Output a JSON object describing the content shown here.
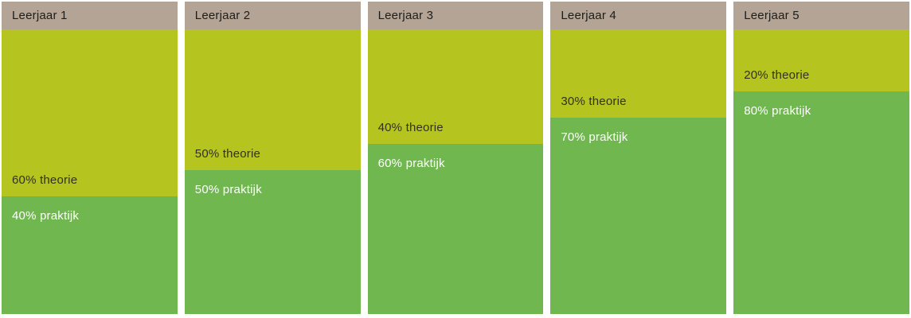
{
  "chart_data": {
    "type": "bar",
    "subtype": "stacked-100-percent-columns",
    "title": "",
    "categories": [
      "Leerjaar 1",
      "Leerjaar 2",
      "Leerjaar 3",
      "Leerjaar 4",
      "Leerjaar 5"
    ],
    "series": [
      {
        "name": "theorie",
        "values": [
          60,
          50,
          40,
          30,
          20
        ]
      },
      {
        "name": "praktijk",
        "values": [
          40,
          50,
          60,
          70,
          80
        ]
      }
    ],
    "unit": "%",
    "ylim": [
      0,
      100
    ],
    "grid": false,
    "legend_position": "none",
    "annotations": [
      "60% theorie",
      "40% praktijk",
      "50% theorie",
      "50% praktijk",
      "40% theorie",
      "60% praktijk",
      "30% theorie",
      "70% praktijk",
      "20% theorie",
      "80% praktijk"
    ]
  },
  "columns": [
    {
      "title": "Leerjaar 1",
      "theorie_pct": 60,
      "praktijk_pct": 40,
      "theorie_label": "60% theorie",
      "praktijk_label": "40% praktijk"
    },
    {
      "title": "Leerjaar 2",
      "theorie_pct": 50,
      "praktijk_pct": 50,
      "theorie_label": "50% theorie",
      "praktijk_label": "50% praktijk"
    },
    {
      "title": "Leerjaar 3",
      "theorie_pct": 40,
      "praktijk_pct": 60,
      "theorie_label": "40% theorie",
      "praktijk_label": "60% praktijk"
    },
    {
      "title": "Leerjaar 4",
      "theorie_pct": 30,
      "praktijk_pct": 70,
      "theorie_label": "30% theorie",
      "praktijk_label": "70% praktijk"
    },
    {
      "title": "Leerjaar 5",
      "theorie_pct": 20,
      "praktijk_pct": 80,
      "theorie_label": "20% theorie",
      "praktijk_label": "80% praktijk"
    }
  ],
  "colors": {
    "header_bg": "#b3a495",
    "header_text": "#1d1d1b",
    "theorie_bg": "#b5c41e",
    "theorie_text": "#32321c",
    "praktijk_bg": "#70b750",
    "praktijk_text": "#ffffff"
  }
}
